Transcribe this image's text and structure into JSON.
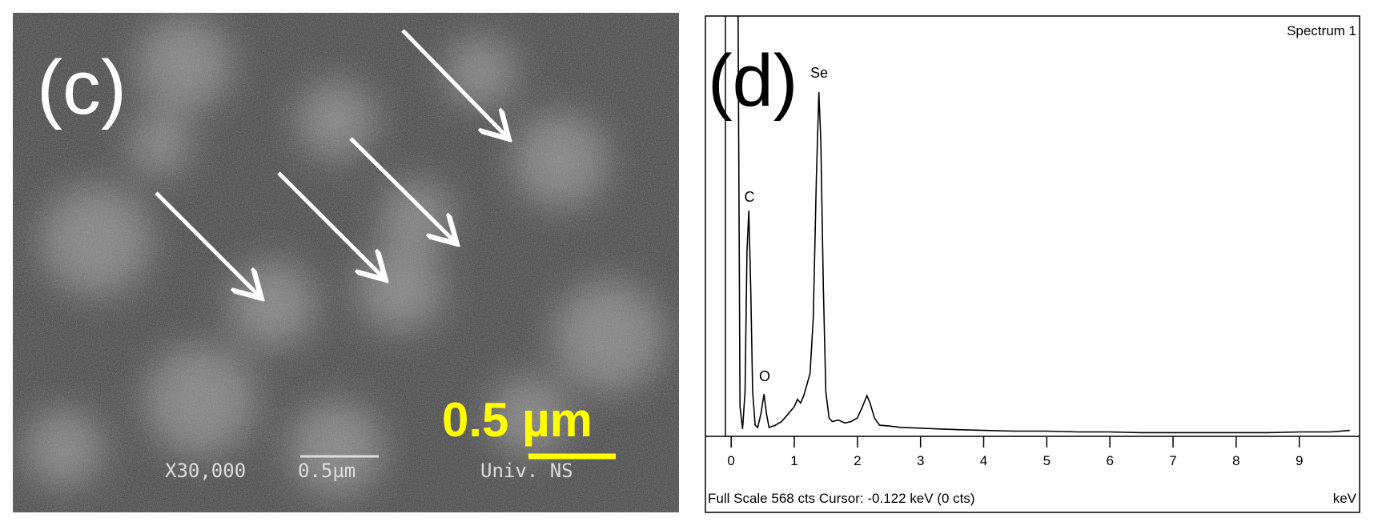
{
  "image_panel": {
    "label": "(c)",
    "scale_label": "0.5 µm",
    "magnification": "X30,000",
    "bar_text": "0.5µm",
    "institution": "Univ. NS"
  },
  "chart_data": {
    "type": "line",
    "panel_label": "(d)",
    "title": "Spectrum 1",
    "x_label": "keV",
    "footer": "Full Scale 568 cts  Cursor: -0.122 keV (0 cts)",
    "annotations": [
      "Se",
      "C",
      "O"
    ],
    "xlim": [
      -0.37,
      9.93
    ],
    "ylim": [
      0,
      568
    ],
    "xticks": [
      0,
      1,
      2,
      3,
      4,
      5,
      6,
      7,
      8,
      9
    ],
    "x": [
      0.11,
      0.14,
      0.18,
      0.22,
      0.25,
      0.28,
      0.31,
      0.34,
      0.38,
      0.42,
      0.47,
      0.52,
      0.56,
      0.6,
      0.7,
      0.8,
      0.9,
      1.0,
      1.05,
      1.1,
      1.15,
      1.2,
      1.25,
      1.3,
      1.35,
      1.39,
      1.42,
      1.46,
      1.5,
      1.55,
      1.6,
      1.7,
      1.8,
      1.9,
      2.0,
      2.08,
      2.15,
      2.2,
      2.27,
      2.35,
      2.5,
      2.7,
      3.0,
      3.3,
      3.6,
      4.0,
      4.5,
      5.0,
      5.5,
      6.0,
      6.5,
      7.0,
      7.5,
      8.0,
      8.5,
      9.0,
      9.5,
      9.8
    ],
    "series": [
      {
        "color": "#000000",
        "values": [
          568,
          40,
          10,
          60,
          250,
          305,
          200,
          60,
          15,
          12,
          30,
          57,
          30,
          12,
          15,
          20,
          30,
          40,
          50,
          45,
          55,
          70,
          85,
          160,
          350,
          465,
          400,
          200,
          60,
          25,
          20,
          22,
          18,
          20,
          25,
          40,
          55,
          45,
          25,
          15,
          14,
          12,
          11,
          10,
          9,
          8,
          7,
          7,
          6,
          6,
          5,
          5,
          5,
          5,
          5,
          6,
          6,
          8
        ]
      }
    ]
  }
}
